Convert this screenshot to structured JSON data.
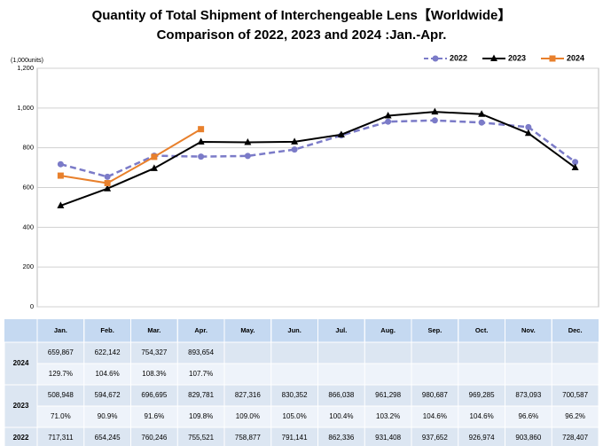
{
  "chart_data": {
    "type": "line",
    "title": "Quantity of Total Shipment of Interchengeable Lens【Worldwide】",
    "subtitle": "Comparison of 2022, 2023 and 2024 :Jan.-Apr.",
    "y_label": "(1,000units)",
    "categories": [
      "Jan.",
      "Feb.",
      "Mar.",
      "Apr.",
      "May.",
      "Jun.",
      "Jul.",
      "Aug.",
      "Sep.",
      "Oct.",
      "Nov.",
      "Dec."
    ],
    "ylim": [
      0,
      1200
    ],
    "yticks": [
      0,
      200,
      400,
      600,
      800,
      {
        "value": 1000,
        "label": "1,000"
      },
      {
        "value": 1200,
        "label": "1,200"
      }
    ],
    "legend": "top-right",
    "series": [
      {
        "name": "2022",
        "color": "#7b7bc8",
        "dashed": true,
        "marker": "circle",
        "values": [
          717.311,
          654.245,
          760.246,
          755.521,
          758.877,
          791.141,
          862.336,
          931.408,
          937.652,
          926.974,
          903.86,
          728.407
        ],
        "value_labels": [
          "717,311",
          "654,245",
          "760,246",
          "755,521",
          "758,877",
          "791,141",
          "862,336",
          "931,408",
          "937,652",
          "926,974",
          "903,860",
          "728,407"
        ]
      },
      {
        "name": "2023",
        "color": "#000000",
        "dashed": false,
        "marker": "triangle",
        "values": [
          508.948,
          594.672,
          696.695,
          829.781,
          827.316,
          830.352,
          866.038,
          961.298,
          980.687,
          969.285,
          873.093,
          700.587
        ],
        "value_labels": [
          "508,948",
          "594,672",
          "696,695",
          "829,781",
          "827,316",
          "830,352",
          "866,038",
          "961,298",
          "980,687",
          "969,285",
          "873,093",
          "700,587"
        ],
        "ratio_labels": [
          "71.0%",
          "90.9%",
          "91.6%",
          "109.8%",
          "109.0%",
          "105.0%",
          "100.4%",
          "103.2%",
          "104.6%",
          "104.6%",
          "96.6%",
          "96.2%"
        ]
      },
      {
        "name": "2024",
        "color": "#e8802c",
        "dashed": false,
        "marker": "square",
        "values": [
          659.867,
          622.142,
          754.327,
          893.654,
          null,
          null,
          null,
          null,
          null,
          null,
          null,
          null
        ],
        "value_labels": [
          "659,867",
          "622,142",
          "754,327",
          "893,654",
          null,
          null,
          null,
          null,
          null,
          null,
          null,
          null
        ],
        "ratio_labels": [
          "129.7%",
          "104.6%",
          "108.3%",
          "107.7%",
          null,
          null,
          null,
          null,
          null,
          null,
          null,
          null
        ]
      }
    ]
  }
}
